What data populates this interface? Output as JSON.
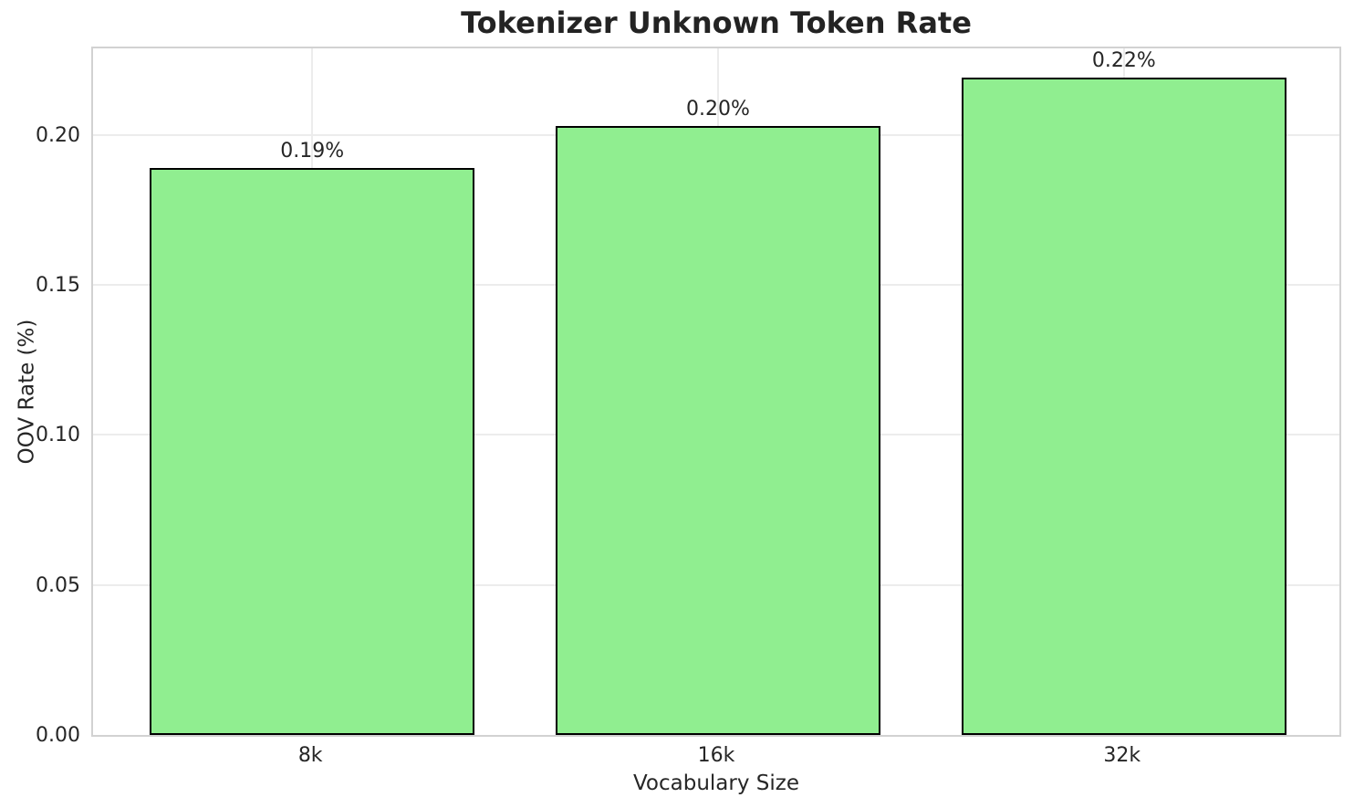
{
  "chart_data": {
    "type": "bar",
    "title": "Tokenizer Unknown Token Rate",
    "xlabel": "Vocabulary Size",
    "ylabel": "OOV Rate (%)",
    "categories": [
      "8k",
      "16k",
      "32k"
    ],
    "values": [
      0.189,
      0.203,
      0.219
    ],
    "bar_labels": [
      "0.19%",
      "0.20%",
      "0.22%"
    ],
    "yticks": [
      0.0,
      0.05,
      0.1,
      0.15,
      0.2
    ],
    "ytick_labels": [
      "0.00",
      "0.05",
      "0.10",
      "0.15",
      "0.20"
    ],
    "ylim": [
      0,
      0.23
    ],
    "grid": "on",
    "legend": "none",
    "bar_color": "#90ee90",
    "bar_edge_color": "#000000",
    "grid_color": "#ececec",
    "spine_color": "#d2d2d2",
    "text_color": "#262626"
  }
}
